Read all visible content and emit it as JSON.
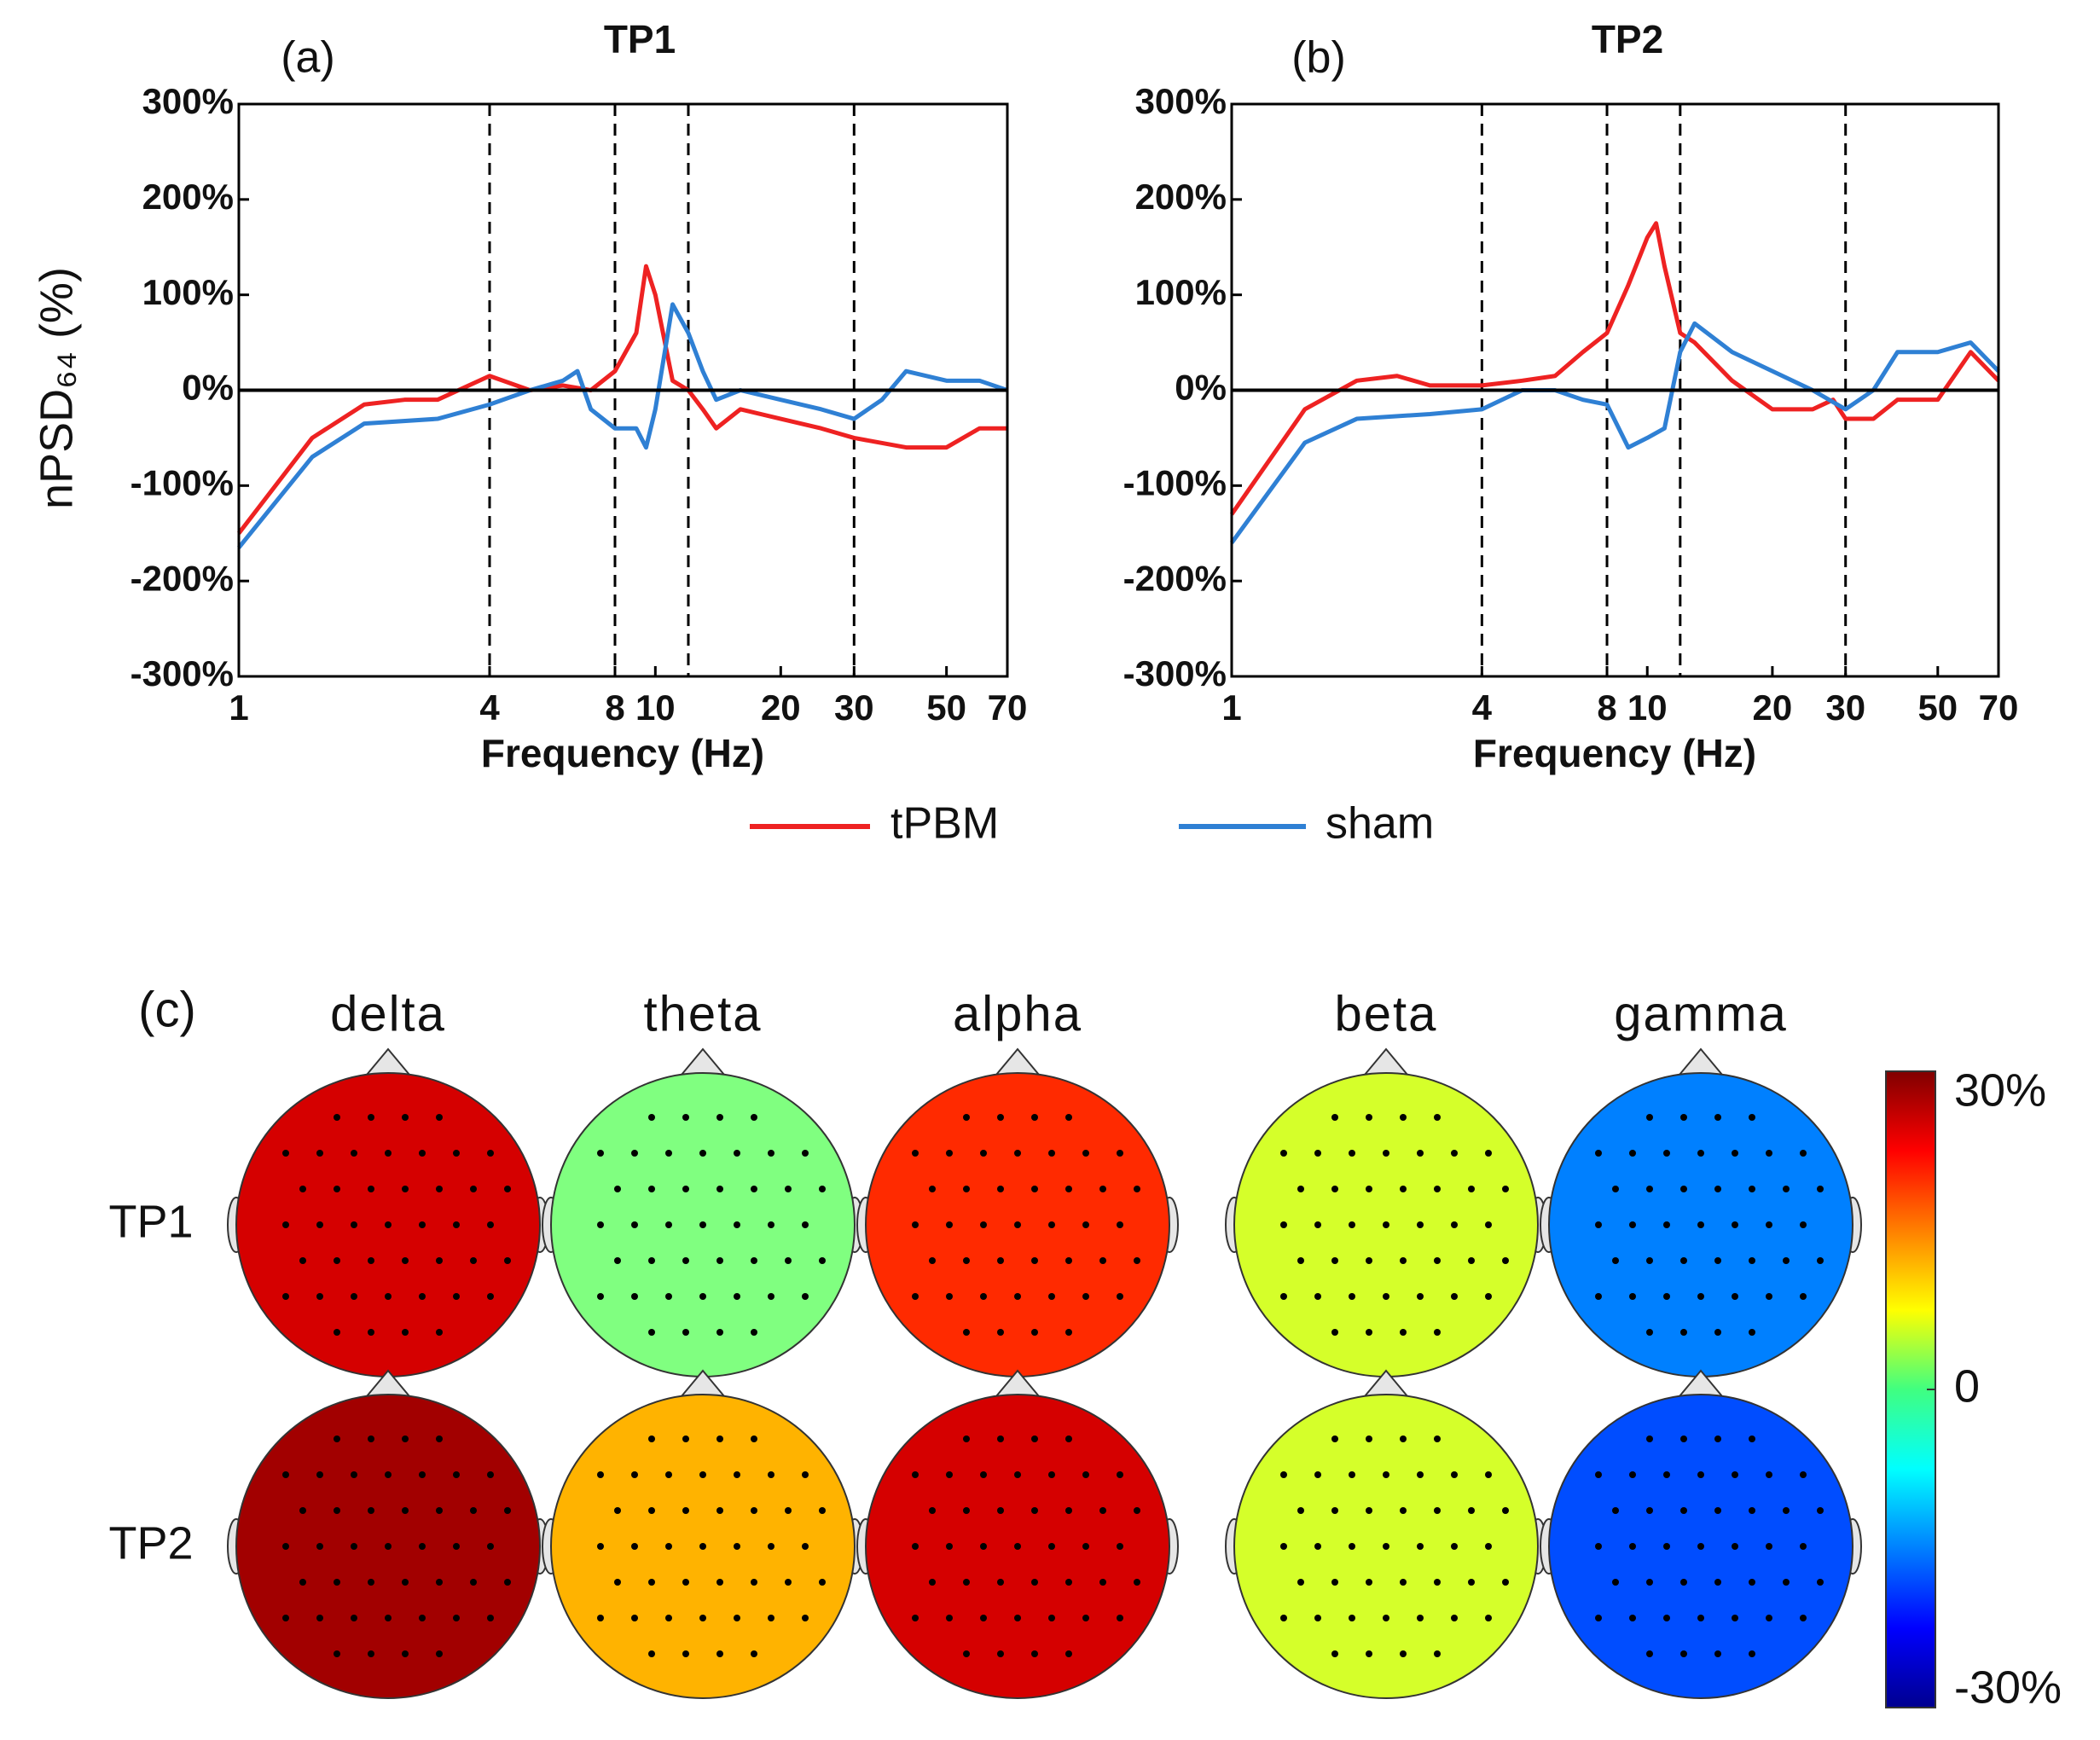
{
  "chart_data": [
    {
      "type": "line",
      "panel": "(a)",
      "title": "TP1",
      "xlabel": "Frequency (Hz)",
      "ylabel": "nPSD₆₄ (%)",
      "xlog": true,
      "xlim": [
        1,
        70
      ],
      "xticks": [
        1,
        4,
        8,
        10,
        20,
        30,
        50,
        70
      ],
      "ylim": [
        -300,
        300
      ],
      "yticks": [
        {
          "value": -300,
          "label": "-300%"
        },
        {
          "value": -200,
          "label": "-200%"
        },
        {
          "value": -100,
          "label": "-100%"
        },
        {
          "value": 0,
          "label": "0%"
        },
        {
          "value": 100,
          "label": "100%"
        },
        {
          "value": 200,
          "label": "200%"
        },
        {
          "value": 300,
          "label": "300%"
        }
      ],
      "vlines": [
        4,
        8,
        12,
        30
      ],
      "hlines": [
        0
      ],
      "series": [
        {
          "name": "tPBM",
          "color": "#ee2222",
          "x": [
            1,
            1.5,
            2,
            2.5,
            3,
            4,
            5,
            6,
            7,
            8,
            9,
            9.5,
            10,
            11,
            12,
            13,
            14,
            16,
            20,
            25,
            30,
            40,
            50,
            60,
            70
          ],
          "values": [
            -150,
            -50,
            -15,
            -10,
            -10,
            15,
            0,
            5,
            0,
            20,
            60,
            130,
            100,
            10,
            0,
            -20,
            -40,
            -20,
            -30,
            -40,
            -50,
            -60,
            -60,
            -40,
            -40
          ]
        },
        {
          "name": "sham",
          "color": "#2f80d4",
          "x": [
            1,
            1.5,
            2,
            3,
            4,
            5,
            6,
            6.5,
            7,
            8,
            9,
            9.5,
            10,
            11,
            12,
            13,
            14,
            16,
            20,
            25,
            30,
            35,
            40,
            50,
            60,
            70
          ],
          "values": [
            -165,
            -70,
            -35,
            -30,
            -15,
            0,
            10,
            20,
            -20,
            -40,
            -40,
            -60,
            -20,
            90,
            60,
            20,
            -10,
            0,
            -10,
            -20,
            -30,
            -10,
            20,
            10,
            10,
            0
          ]
        }
      ]
    },
    {
      "type": "line",
      "panel": "(b)",
      "title": "TP2",
      "xlabel": "Frequency (Hz)",
      "xlog": true,
      "xlim": [
        1,
        70
      ],
      "xticks": [
        1,
        4,
        8,
        10,
        20,
        30,
        50,
        70
      ],
      "ylim": [
        -300,
        300
      ],
      "yticks": [
        {
          "value": -300,
          "label": "-300%"
        },
        {
          "value": -200,
          "label": "-200%"
        },
        {
          "value": -100,
          "label": "-100%"
        },
        {
          "value": 0,
          "label": "0%"
        },
        {
          "value": 100,
          "label": "100%"
        },
        {
          "value": 200,
          "label": "200%"
        },
        {
          "value": 300,
          "label": "300%"
        }
      ],
      "vlines": [
        4,
        8,
        12,
        30
      ],
      "hlines": [
        0
      ],
      "series": [
        {
          "color": "#ee2222",
          "x": [
            1,
            1.5,
            2,
            2.5,
            3,
            4,
            5,
            6,
            7,
            8,
            9,
            10,
            10.5,
            11,
            12,
            13,
            16,
            20,
            25,
            28,
            30,
            35,
            40,
            50,
            60,
            70
          ],
          "values": [
            -130,
            -20,
            10,
            15,
            5,
            5,
            10,
            15,
            40,
            60,
            110,
            160,
            175,
            130,
            60,
            50,
            10,
            -20,
            -20,
            -10,
            -30,
            -30,
            -10,
            -10,
            40,
            10
          ]
        },
        {
          "color": "#2f80d4",
          "x": [
            1,
            1.5,
            2,
            3,
            4,
            5,
            6,
            7,
            8,
            9,
            10,
            11,
            12,
            13,
            16,
            20,
            25,
            30,
            35,
            40,
            50,
            60,
            70
          ],
          "values": [
            -160,
            -55,
            -30,
            -25,
            -20,
            0,
            0,
            -10,
            -15,
            -60,
            -50,
            -40,
            40,
            70,
            40,
            20,
            0,
            -20,
            0,
            40,
            40,
            50,
            20
          ]
        }
      ]
    },
    {
      "type": "topomap",
      "panel": "(c)",
      "columns": [
        "delta",
        "theta",
        "alpha",
        "beta",
        "gamma"
      ],
      "rows": [
        "TP1",
        "TP2"
      ],
      "values": [
        [
          25,
          0,
          20,
          5,
          -15
        ],
        [
          28,
          12,
          25,
          5,
          -18
        ]
      ],
      "clim": [
        -30,
        30
      ],
      "cticks": [
        {
          "value": 30,
          "label": "30%"
        },
        0,
        {
          "value": -30,
          "label": "-30%"
        }
      ]
    }
  ]
}
